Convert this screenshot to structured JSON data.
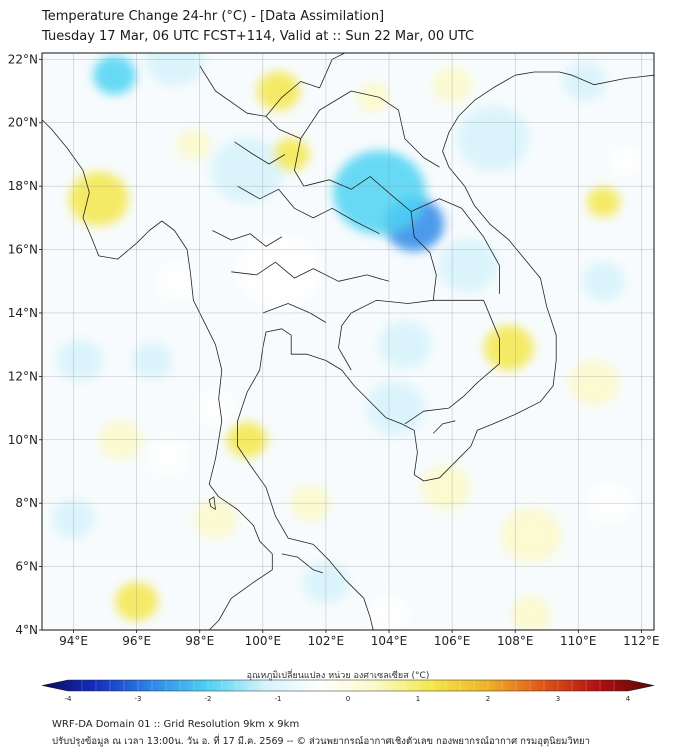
{
  "header": {
    "title_line1": "Temperature Change 24-hr (°C) - [Data Assimilation]",
    "title_line2": "Tuesday 17 Mar, 06 UTC FCST+114, Valid at :: Sun 22 Mar, 00 UTC"
  },
  "chart_data": {
    "type": "heatmap",
    "title": "Temperature Change 24-hr (°C) - [Data Assimilation]",
    "subtitle": "Tuesday 17 Mar, 06 UTC FCST+114, Valid at :: Sun 22 Mar, 00 UTC",
    "x_range": [
      93,
      112.4
    ],
    "y_range": [
      4,
      22.2
    ],
    "x_ticks": [
      94,
      96,
      98,
      100,
      102,
      104,
      106,
      108,
      110,
      112
    ],
    "x_tick_labels": [
      "94°E",
      "96°E",
      "98°E",
      "100°E",
      "102°E",
      "104°E",
      "106°E",
      "108°E",
      "110°E",
      "112°E"
    ],
    "y_ticks": [
      4,
      6,
      8,
      10,
      12,
      14,
      16,
      18,
      20,
      22
    ],
    "y_tick_labels": [
      "4°N",
      "6°N",
      "8°N",
      "10°N",
      "12°N",
      "14°N",
      "16°N",
      "18°N",
      "20°N",
      "22°N"
    ],
    "grid": true,
    "colorbar": {
      "label": "อุณหภูมิเปลี่ยนแปลง หน่วย องศาเซลเซียส (°C)",
      "range": [
        -4,
        4
      ],
      "ticks": [
        -4,
        -3,
        -2,
        -1,
        0,
        1,
        2,
        3,
        4
      ],
      "tick_labels": [
        "-4",
        "-3",
        "-2",
        "-1",
        "0",
        "1",
        "2",
        "3",
        "4"
      ],
      "colors": [
        "#08085e",
        "#1530c0",
        "#2f8ae8",
        "#4fd3f3",
        "#d6f3fb",
        "#ffffff",
        "#fbf9c8",
        "#f4e84a",
        "#f0b22a",
        "#e05618",
        "#b01010",
        "#5a0606"
      ]
    },
    "field_features": [
      {
        "lon": 104.8,
        "lat": 16.8,
        "value": -2.3,
        "extent_deg": 1.8
      },
      {
        "lon": 95.3,
        "lat": 21.5,
        "value": -2.0,
        "extent_deg": 1.3
      },
      {
        "lon": 103.7,
        "lat": 17.8,
        "value": -1.4,
        "extent_deg": 2.8
      },
      {
        "lon": 99.5,
        "lat": 18.5,
        "value": -1.0,
        "extent_deg": 2.2
      },
      {
        "lon": 97.2,
        "lat": 22.0,
        "value": -1.0,
        "extent_deg": 1.8
      },
      {
        "lon": 106.5,
        "lat": 15.5,
        "value": -0.9,
        "extent_deg": 1.8
      },
      {
        "lon": 107.3,
        "lat": 19.5,
        "value": -0.8,
        "extent_deg": 2.2
      },
      {
        "lon": 110.2,
        "lat": 21.3,
        "value": -0.9,
        "extent_deg": 1.3
      },
      {
        "lon": 102.0,
        "lat": 5.5,
        "value": -1.2,
        "extent_deg": 1.4
      },
      {
        "lon": 104.2,
        "lat": 11.0,
        "value": -0.9,
        "extent_deg": 1.8
      },
      {
        "lon": 104.5,
        "lat": 13.0,
        "value": -0.8,
        "extent_deg": 1.6
      },
      {
        "lon": 100.5,
        "lat": 15.3,
        "value": -0.6,
        "extent_deg": 2.5
      },
      {
        "lon": 94.2,
        "lat": 12.5,
        "value": -0.8,
        "extent_deg": 1.4
      },
      {
        "lon": 96.5,
        "lat": 12.5,
        "value": -0.7,
        "extent_deg": 1.2
      },
      {
        "lon": 97.3,
        "lat": 15.0,
        "value": -0.6,
        "extent_deg": 1.3
      },
      {
        "lon": 110.8,
        "lat": 15.0,
        "value": -0.8,
        "extent_deg": 1.3
      },
      {
        "lon": 111.5,
        "lat": 18.8,
        "value": -0.6,
        "extent_deg": 1.0
      },
      {
        "lon": 94.0,
        "lat": 7.5,
        "value": -0.7,
        "extent_deg": 1.3
      },
      {
        "lon": 97.0,
        "lat": 9.5,
        "value": -0.6,
        "extent_deg": 1.3
      },
      {
        "lon": 104.0,
        "lat": 4.5,
        "value": -0.6,
        "extent_deg": 1.2
      },
      {
        "lon": 111.0,
        "lat": 8.0,
        "value": -0.5,
        "extent_deg": 1.4
      },
      {
        "lon": 98.5,
        "lat": 11.0,
        "value": -0.5,
        "extent_deg": 1.2
      },
      {
        "lon": 107.8,
        "lat": 12.9,
        "value": 1.0,
        "extent_deg": 1.5
      },
      {
        "lon": 100.9,
        "lat": 19.0,
        "value": 1.0,
        "extent_deg": 1.1
      },
      {
        "lon": 94.8,
        "lat": 17.6,
        "value": 0.9,
        "extent_deg": 1.8
      },
      {
        "lon": 100.5,
        "lat": 21.0,
        "value": 0.9,
        "extent_deg": 1.3
      },
      {
        "lon": 110.8,
        "lat": 17.5,
        "value": 0.9,
        "extent_deg": 1.0
      },
      {
        "lon": 99.5,
        "lat": 10.0,
        "value": 0.8,
        "extent_deg": 1.2
      },
      {
        "lon": 96.0,
        "lat": 4.9,
        "value": 0.8,
        "extent_deg": 1.3
      },
      {
        "lon": 98.5,
        "lat": 7.5,
        "value": 0.6,
        "extent_deg": 1.3
      },
      {
        "lon": 108.5,
        "lat": 7.0,
        "value": 0.6,
        "extent_deg": 1.8
      },
      {
        "lon": 105.8,
        "lat": 8.5,
        "value": 0.5,
        "extent_deg": 1.5
      },
      {
        "lon": 110.5,
        "lat": 11.8,
        "value": 0.4,
        "extent_deg": 1.5
      },
      {
        "lon": 101.5,
        "lat": 8.0,
        "value": 0.5,
        "extent_deg": 1.2
      },
      {
        "lon": 95.5,
        "lat": 10.0,
        "value": 0.4,
        "extent_deg": 1.3
      },
      {
        "lon": 106.0,
        "lat": 21.2,
        "value": 0.5,
        "extent_deg": 1.2
      },
      {
        "lon": 103.5,
        "lat": 20.8,
        "value": 0.4,
        "extent_deg": 1.0
      },
      {
        "lon": 108.5,
        "lat": 4.5,
        "value": 0.5,
        "extent_deg": 1.2
      },
      {
        "lon": 97.8,
        "lat": 19.3,
        "value": 0.4,
        "extent_deg": 1.0
      }
    ]
  },
  "footer": {
    "line1": "WRF-DA Domain 01 :: Grid Resolution 9km x 9km",
    "line2": "ปรับปรุงข้อมูล ณ เวลา 13:00น. วัน อ. ที่ 17 มี.ค. 2569 -- © ส่วนพยากรณ์อากาศเชิงตัวเลข กองพยากรณ์อากาศ กรมอุตุนิยมวิทยา"
  }
}
